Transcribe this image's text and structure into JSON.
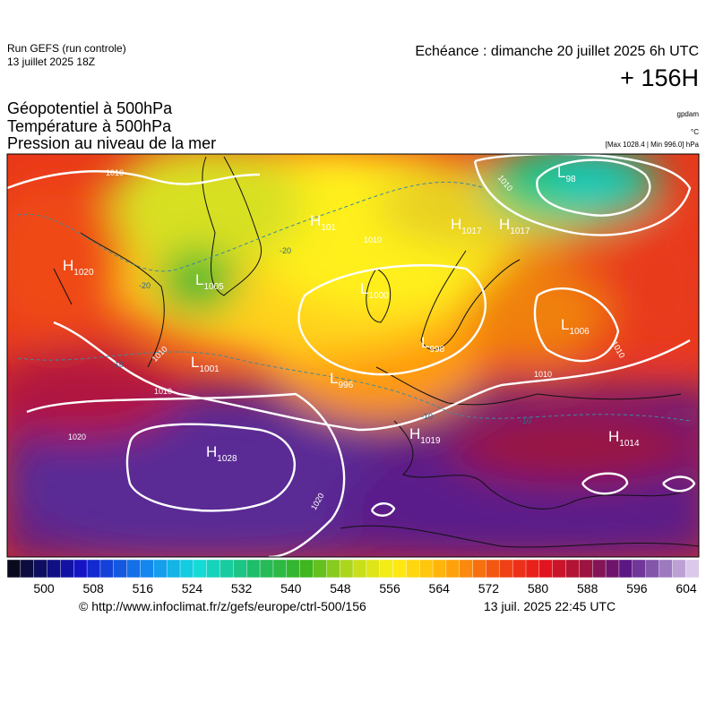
{
  "header": {
    "run": "Run GEFS (run controle)",
    "run_date": "13 juillet 2025 18Z",
    "echeance": "Echéance : dimanche 20 juillet 2025 6h UTC",
    "lead": "+ 156H"
  },
  "titles": [
    "Géopotentiel à 500hPa",
    "Température à 500hPa",
    "Pression au niveau de la mer"
  ],
  "units": [
    "gpdam",
    "°C",
    "[Max 1028.4 | Min 996.0] hPa"
  ],
  "centers": [
    {
      "type": "H",
      "value": "1020"
    },
    {
      "type": "L",
      "value": "1005"
    },
    {
      "type": "H",
      "value": "101"
    },
    {
      "type": "H",
      "value": "1017"
    },
    {
      "type": "H",
      "value": "1017"
    },
    {
      "type": "L",
      "value": "98"
    },
    {
      "type": "L",
      "value": "1000"
    },
    {
      "type": "L",
      "value": "998"
    },
    {
      "type": "L",
      "value": "1006"
    },
    {
      "type": "L",
      "value": "1001"
    },
    {
      "type": "L",
      "value": "996"
    },
    {
      "type": "H",
      "value": "1019"
    },
    {
      "type": "H",
      "value": "1014"
    },
    {
      "type": "H",
      "value": "1028"
    }
  ],
  "isobar_labels": [
    "1010",
    "1010",
    "1010",
    "1010",
    "1010",
    "1010",
    "1020",
    "1020",
    "1010"
  ],
  "temperature_labels": [
    "-20",
    "-20",
    "-10",
    "-10",
    "-10"
  ],
  "scale": [
    500,
    508,
    516,
    524,
    532,
    540,
    548,
    556,
    564,
    572,
    580,
    588,
    596,
    604
  ],
  "footer": {
    "url": "© http://www.infoclimat.fr/z/gefs/europe/ctrl-500/156",
    "time": "13 juil. 2025 22:45 UTC"
  }
}
